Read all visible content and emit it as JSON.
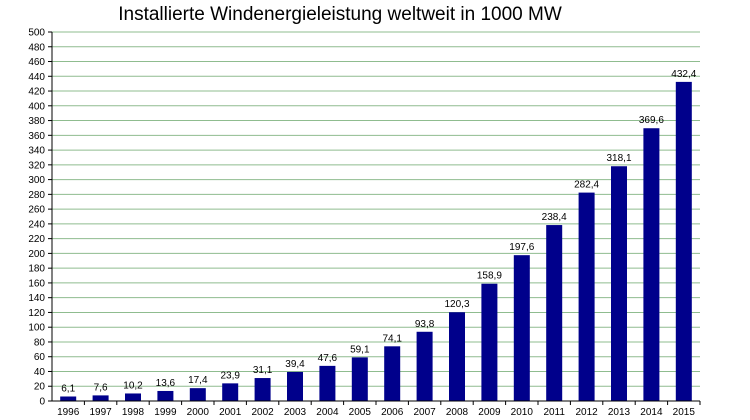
{
  "chart_data": {
    "type": "bar",
    "title": "Installierte Windenergieleistung weltweit in 1000 MW",
    "categories": [
      "1996",
      "1997",
      "1998",
      "1999",
      "2000",
      "2001",
      "2002",
      "2003",
      "2004",
      "2005",
      "2006",
      "2007",
      "2008",
      "2009",
      "2010",
      "2011",
      "2012",
      "2013",
      "2014",
      "2015"
    ],
    "values": [
      6.1,
      7.6,
      10.2,
      13.6,
      17.4,
      23.9,
      31.1,
      39.4,
      47.6,
      59.1,
      74.1,
      93.8,
      120.3,
      158.9,
      197.6,
      238.4,
      282.4,
      318.1,
      369.6,
      432.4
    ],
    "data_labels": [
      "6,1",
      "7,6",
      "10,2",
      "13,6",
      "17,4",
      "23,9",
      "31,1",
      "39,4",
      "47,6",
      "59,1",
      "74,1",
      "93,8",
      "120,3",
      "158,9",
      "197,6",
      "238,4",
      "282,4",
      "318,1",
      "369,6",
      "432,4"
    ],
    "xlabel": "",
    "ylabel": "",
    "ylim": [
      0,
      500
    ],
    "y_ticks": [
      0,
      20,
      40,
      60,
      80,
      100,
      120,
      140,
      160,
      180,
      200,
      220,
      240,
      260,
      280,
      300,
      320,
      340,
      360,
      380,
      400,
      420,
      440,
      460,
      480,
      500
    ],
    "grid": true,
    "legend": "none",
    "colors": {
      "bar": "#00008b",
      "grid": "#8fbc8f",
      "axis": "#000000"
    }
  }
}
